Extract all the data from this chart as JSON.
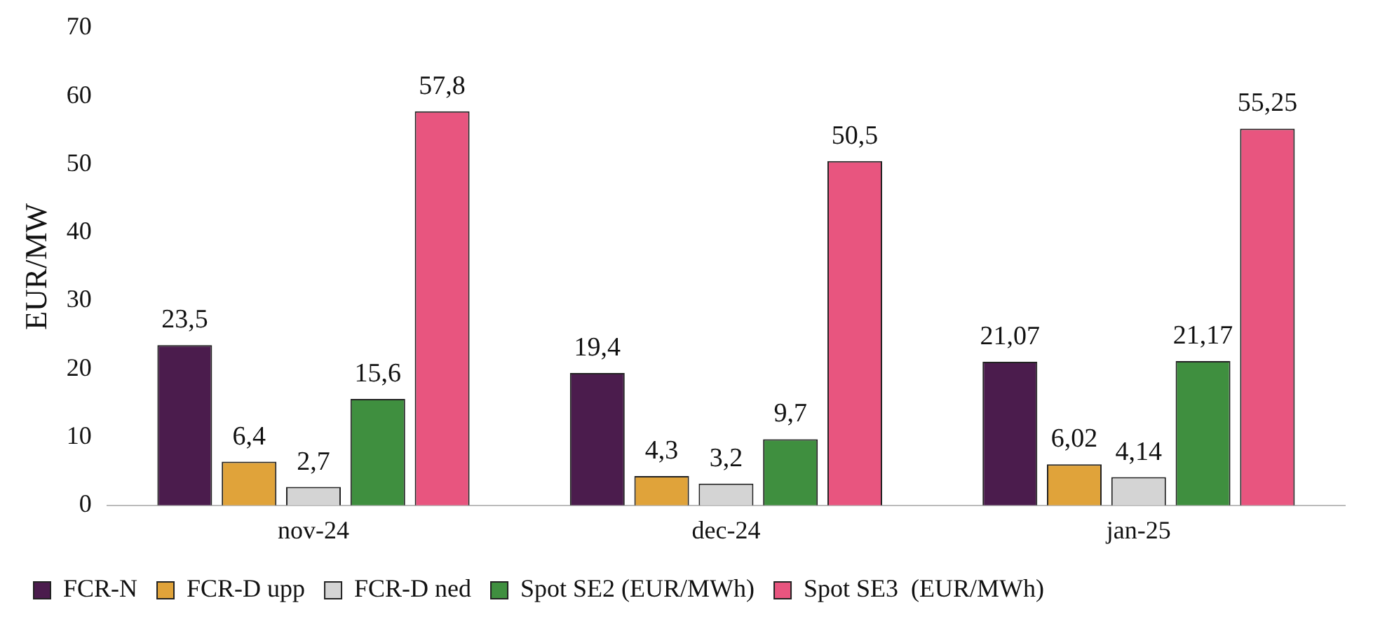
{
  "chart_data": {
    "type": "bar",
    "ylabel": "EUR/MW",
    "categories": [
      "nov-24",
      "dec-24",
      "jan-25"
    ],
    "series": [
      {
        "name": "FCR-N",
        "color": "#4b1c4d",
        "values": [
          23.5,
          19.4,
          21.07
        ],
        "value_labels": [
          "23,5",
          "19,4",
          "21,07"
        ]
      },
      {
        "name": "FCR-D upp",
        "color": "#e0a33a",
        "values": [
          6.4,
          4.3,
          6.02
        ],
        "value_labels": [
          "6,4",
          "4,3",
          "6,02"
        ]
      },
      {
        "name": "FCR-D ned",
        "color": "#d4d4d4",
        "values": [
          2.7,
          3.2,
          4.14
        ],
        "value_labels": [
          "2,7",
          "3,2",
          "4,14"
        ]
      },
      {
        "name": "Spot SE2 (EUR/MWh)",
        "color": "#3f8f3f",
        "values": [
          15.6,
          9.7,
          21.17
        ],
        "value_labels": [
          "15,6",
          "9,7",
          "21,17"
        ]
      },
      {
        "name": "Spot SE3  (EUR/MWh)",
        "color": "#e8557f",
        "values": [
          57.8,
          50.5,
          55.25
        ],
        "value_labels": [
          "57,8",
          "50,5",
          "55,25"
        ]
      }
    ],
    "ylim": [
      0,
      70
    ],
    "yticks": [
      0,
      10,
      20,
      30,
      40,
      50,
      60,
      70
    ],
    "grid": false,
    "legend": "bottom"
  }
}
